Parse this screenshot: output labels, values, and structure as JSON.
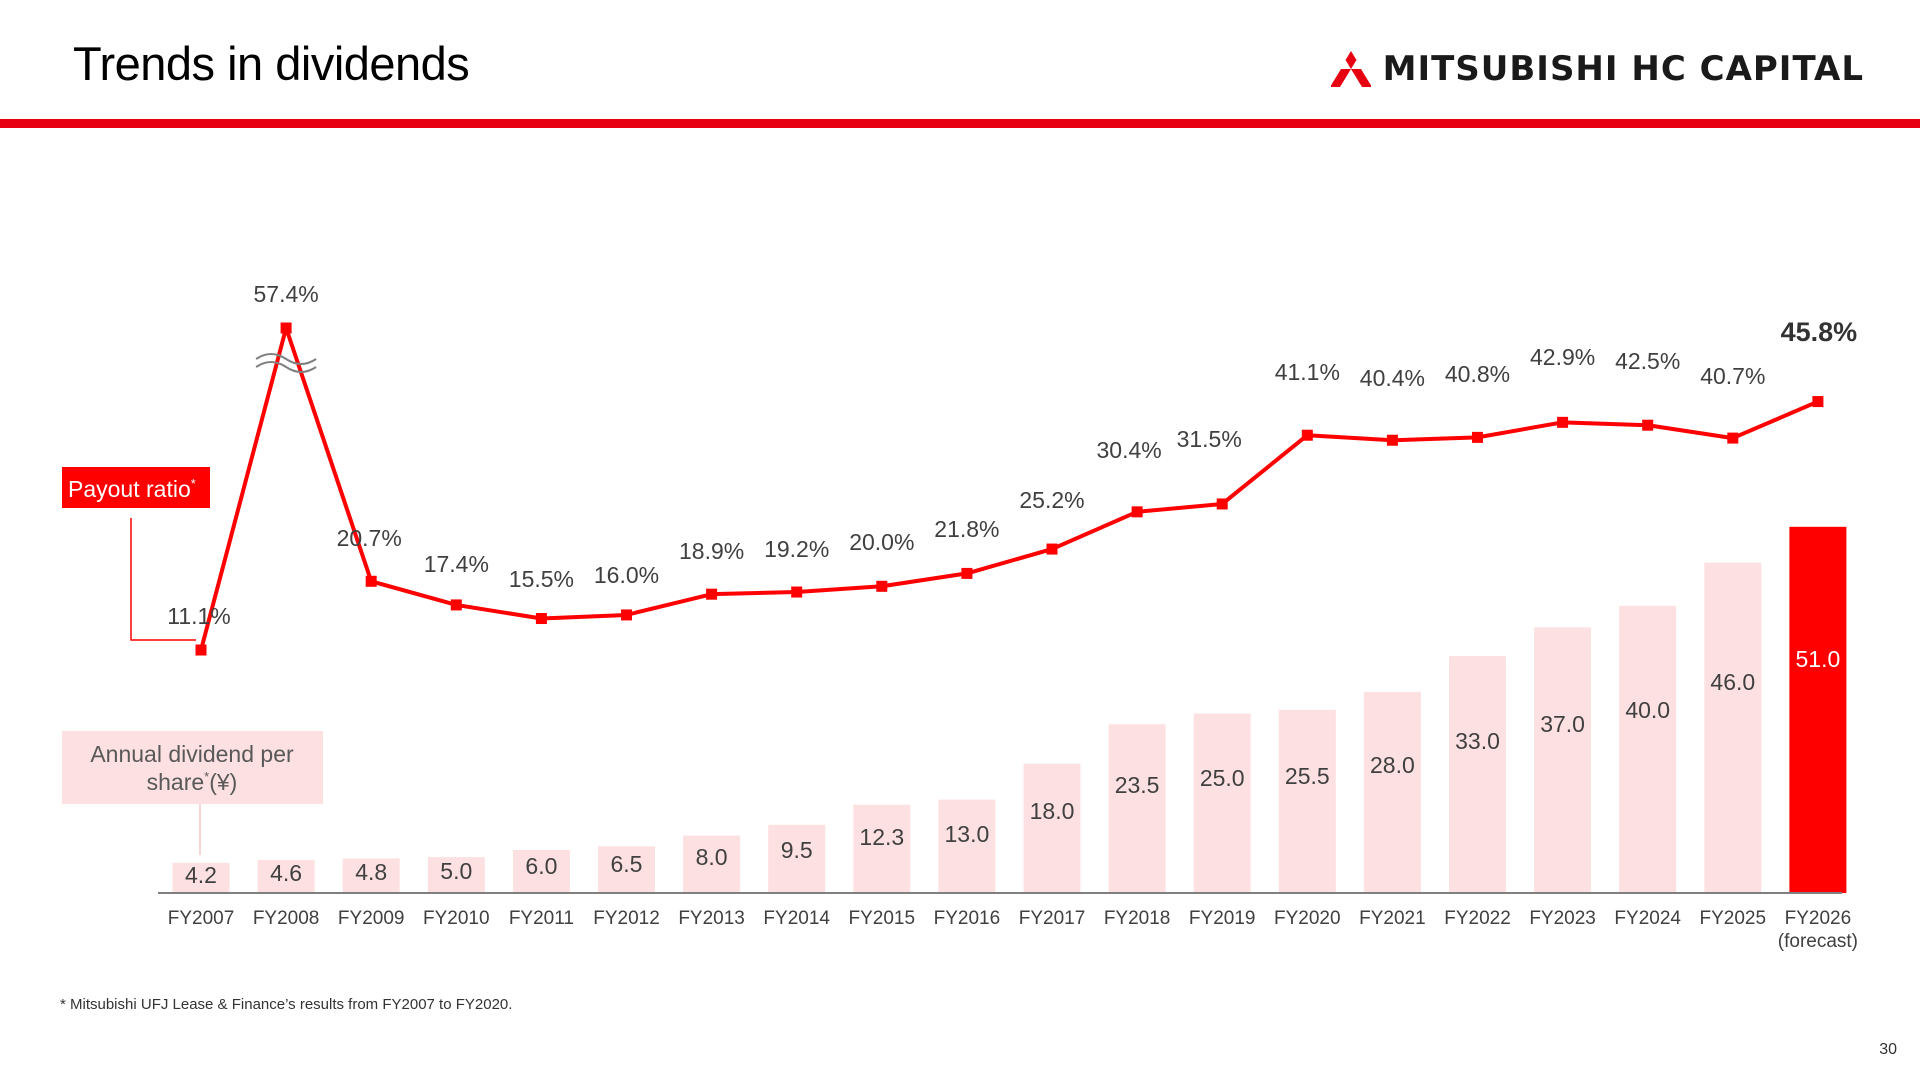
{
  "header": {
    "title": "Trends in dividends",
    "logo_text": "MITSUBISHI HC CAPITAL",
    "accent_color": "#e60012"
  },
  "footer": {
    "footnote": "*  Mitsubishi UFJ Lease & Finance’s results from FY2007 to FY2020.",
    "page_number": "30"
  },
  "chart_data": {
    "type": "bar+line",
    "title": "",
    "categories": [
      "FY2007",
      "FY2008",
      "FY2009",
      "FY2010",
      "FY2011",
      "FY2012",
      "FY2013",
      "FY2014",
      "FY2015",
      "FY2016",
      "FY2017",
      "FY2018",
      "FY2019",
      "FY2020",
      "FY2021",
      "FY2022",
      "FY2023",
      "FY2024",
      "FY2025",
      "FY2026"
    ],
    "category_sublabel": {
      "FY2026": "(forecast)"
    },
    "series": [
      {
        "name": "Annual dividend per share*(¥)",
        "kind": "bar",
        "values": [
          4.2,
          4.6,
          4.8,
          5.0,
          6.0,
          6.5,
          8.0,
          9.5,
          12.3,
          13.0,
          18.0,
          23.5,
          25.0,
          25.5,
          28.0,
          33.0,
          37.0,
          40.0,
          46.0,
          51.0
        ],
        "labels": [
          "4.2",
          "4.6",
          "4.8",
          "5.0",
          "6.0",
          "6.5",
          "8.0",
          "9.5",
          "12.3",
          "13.0",
          "18.0",
          "23.5",
          "25.0",
          "25.5",
          "28.0",
          "33.0",
          "37.0",
          "40.0",
          "46.0",
          "51.0"
        ],
        "color": "#fde0e1",
        "highlight_color": "#ff0000",
        "highlight_index": 19
      },
      {
        "name": "Payout ratio*",
        "kind": "line",
        "values": [
          11.1,
          57.4,
          20.7,
          17.4,
          15.5,
          16.0,
          18.9,
          19.2,
          20.0,
          21.8,
          25.2,
          30.4,
          31.5,
          41.1,
          40.4,
          40.8,
          42.9,
          42.5,
          40.7,
          45.8
        ],
        "labels": [
          "11.1%",
          "57.4%",
          "20.7%",
          "17.4%",
          "15.5%",
          "16.0%",
          "18.9%",
          "19.2%",
          "20.0%",
          "21.8%",
          "25.2%",
          "30.4%",
          "31.5%",
          "41.1%",
          "40.4%",
          "40.8%",
          "42.9%",
          "42.5%",
          "40.7%",
          "45.8%"
        ],
        "color": "#ff0000",
        "axis_break_index": 1
      }
    ],
    "legend": {
      "payout_label": "Payout ratio",
      "payout_mark": "*",
      "dividend_label_line1": "Annual dividend per",
      "dividend_label_line2_a": "share",
      "dividend_label_mark": "*",
      "dividend_label_line2_b": "(¥)"
    },
    "bar_ylim": [
      0,
      55
    ],
    "line_ylim": [
      11.1,
      45.8
    ],
    "grid": false
  }
}
